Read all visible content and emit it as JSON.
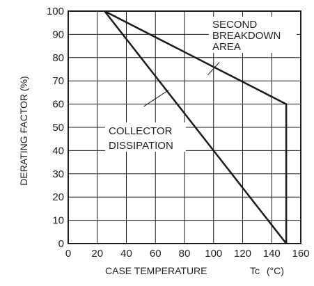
{
  "chart_data": {
    "type": "line",
    "xlabel_main": "CASE TEMPERATURE",
    "xlabel_symbol": "Tc",
    "xlabel_unit": "(°C)",
    "ylabel": "DERATING FACTOR (%)",
    "xlim": [
      0,
      160
    ],
    "ylim": [
      0,
      100
    ],
    "x_ticks": [
      "0",
      "20",
      "40",
      "60",
      "80",
      "100",
      "120",
      "140",
      "160"
    ],
    "y_ticks": [
      "0",
      "10",
      "20",
      "30",
      "40",
      "50",
      "60",
      "70",
      "80",
      "90",
      "100"
    ],
    "grid": true,
    "series": [
      {
        "name": "COLLECTOR DISSIPATION",
        "x": [
          25,
          150
        ],
        "y": [
          100,
          0
        ]
      },
      {
        "name": "SECOND BREAKDOWN AREA",
        "x": [
          25,
          150,
          150
        ],
        "y": [
          100,
          60,
          0
        ]
      }
    ],
    "annotations": {
      "collector": [
        "COLLECTOR",
        "DISSIPATION"
      ],
      "second_breakdown": [
        "SECOND",
        "BREAKDOWN",
        "AREA"
      ]
    },
    "line_color": "#1a1a1a",
    "grid_color": "#1a1a1a"
  }
}
